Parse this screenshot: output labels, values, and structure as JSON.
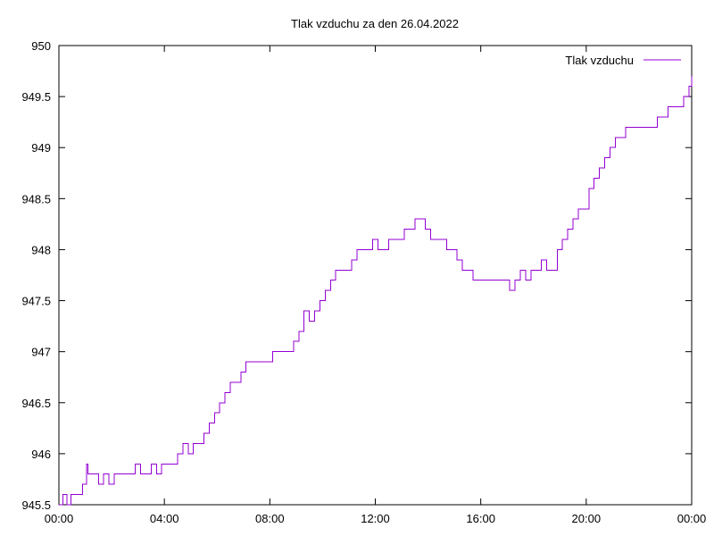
{
  "chart_data": {
    "type": "line",
    "title": "Tlak vzduchu za den 26.04.2022",
    "xlabel": "",
    "ylabel": "",
    "xlim": [
      0,
      24
    ],
    "ylim": [
      945.5,
      950
    ],
    "x_ticks": [
      0,
      4,
      8,
      12,
      16,
      20,
      24
    ],
    "x_tick_labels": [
      "00:00",
      "04:00",
      "08:00",
      "12:00",
      "16:00",
      "20:00",
      "00:00"
    ],
    "y_ticks": [
      945.5,
      946,
      946.5,
      947,
      947.5,
      948,
      948.5,
      949,
      949.5,
      950
    ],
    "y_tick_labels": [
      "945.5",
      "946",
      "946.5",
      "947",
      "947.5",
      "948",
      "948.5",
      "949",
      "949.5",
      "950"
    ],
    "grid": false,
    "legend_position": "top-right",
    "series": [
      {
        "name": "Tlak vzduchu",
        "color": "#9400d3",
        "x": [
          0.0,
          0.15,
          0.3,
          0.45,
          0.6,
          0.75,
          0.9,
          1.05,
          1.1,
          1.3,
          1.5,
          1.7,
          1.9,
          2.1,
          2.3,
          2.5,
          2.7,
          2.9,
          3.1,
          3.3,
          3.5,
          3.7,
          3.9,
          4.1,
          4.3,
          4.5,
          4.7,
          4.9,
          5.1,
          5.3,
          5.5,
          5.7,
          5.9,
          6.1,
          6.3,
          6.5,
          6.7,
          6.9,
          7.1,
          7.3,
          7.5,
          7.7,
          7.9,
          8.1,
          8.3,
          8.5,
          8.7,
          8.9,
          9.1,
          9.3,
          9.5,
          9.7,
          9.9,
          10.1,
          10.3,
          10.5,
          10.7,
          10.9,
          11.1,
          11.3,
          11.5,
          11.7,
          11.9,
          12.1,
          12.3,
          12.5,
          12.7,
          12.9,
          13.1,
          13.3,
          13.5,
          13.7,
          13.9,
          14.1,
          14.3,
          14.5,
          14.7,
          14.9,
          15.1,
          15.3,
          15.5,
          15.7,
          15.9,
          16.1,
          16.3,
          16.5,
          16.7,
          16.9,
          17.1,
          17.3,
          17.5,
          17.7,
          17.9,
          18.1,
          18.3,
          18.5,
          18.7,
          18.9,
          19.1,
          19.3,
          19.5,
          19.7,
          19.9,
          20.1,
          20.3,
          20.5,
          20.7,
          20.9,
          21.1,
          21.3,
          21.5,
          21.7,
          21.9,
          22.1,
          22.3,
          22.5,
          22.7,
          22.9,
          23.1,
          23.3,
          23.5,
          23.7,
          23.9,
          24.0
        ],
        "y": [
          945.5,
          945.6,
          945.5,
          945.6,
          945.6,
          945.6,
          945.7,
          945.9,
          945.8,
          945.8,
          945.7,
          945.8,
          945.7,
          945.8,
          945.8,
          945.8,
          945.8,
          945.9,
          945.8,
          945.8,
          945.9,
          945.8,
          945.9,
          945.9,
          945.9,
          946.0,
          946.1,
          946.0,
          946.1,
          946.1,
          946.2,
          946.3,
          946.4,
          946.5,
          946.6,
          946.7,
          946.7,
          946.8,
          946.9,
          946.9,
          946.9,
          946.9,
          946.9,
          947.0,
          947.0,
          947.0,
          947.0,
          947.1,
          947.2,
          947.4,
          947.3,
          947.4,
          947.5,
          947.6,
          947.7,
          947.8,
          947.8,
          947.8,
          947.9,
          948.0,
          948.0,
          948.0,
          948.1,
          948.0,
          948.0,
          948.1,
          948.1,
          948.1,
          948.2,
          948.2,
          948.3,
          948.3,
          948.2,
          948.1,
          948.1,
          948.1,
          948.0,
          948.0,
          947.9,
          947.8,
          947.8,
          947.7,
          947.7,
          947.7,
          947.7,
          947.7,
          947.7,
          947.7,
          947.6,
          947.7,
          947.8,
          947.7,
          947.8,
          947.8,
          947.9,
          947.8,
          947.8,
          948.0,
          948.1,
          948.2,
          948.3,
          948.4,
          948.4,
          948.6,
          948.7,
          948.8,
          948.9,
          949.0,
          949.1,
          949.1,
          949.2,
          949.2,
          949.2,
          949.2,
          949.2,
          949.2,
          949.3,
          949.3,
          949.4,
          949.4,
          949.4,
          949.5,
          949.6,
          949.7
        ]
      }
    ]
  }
}
